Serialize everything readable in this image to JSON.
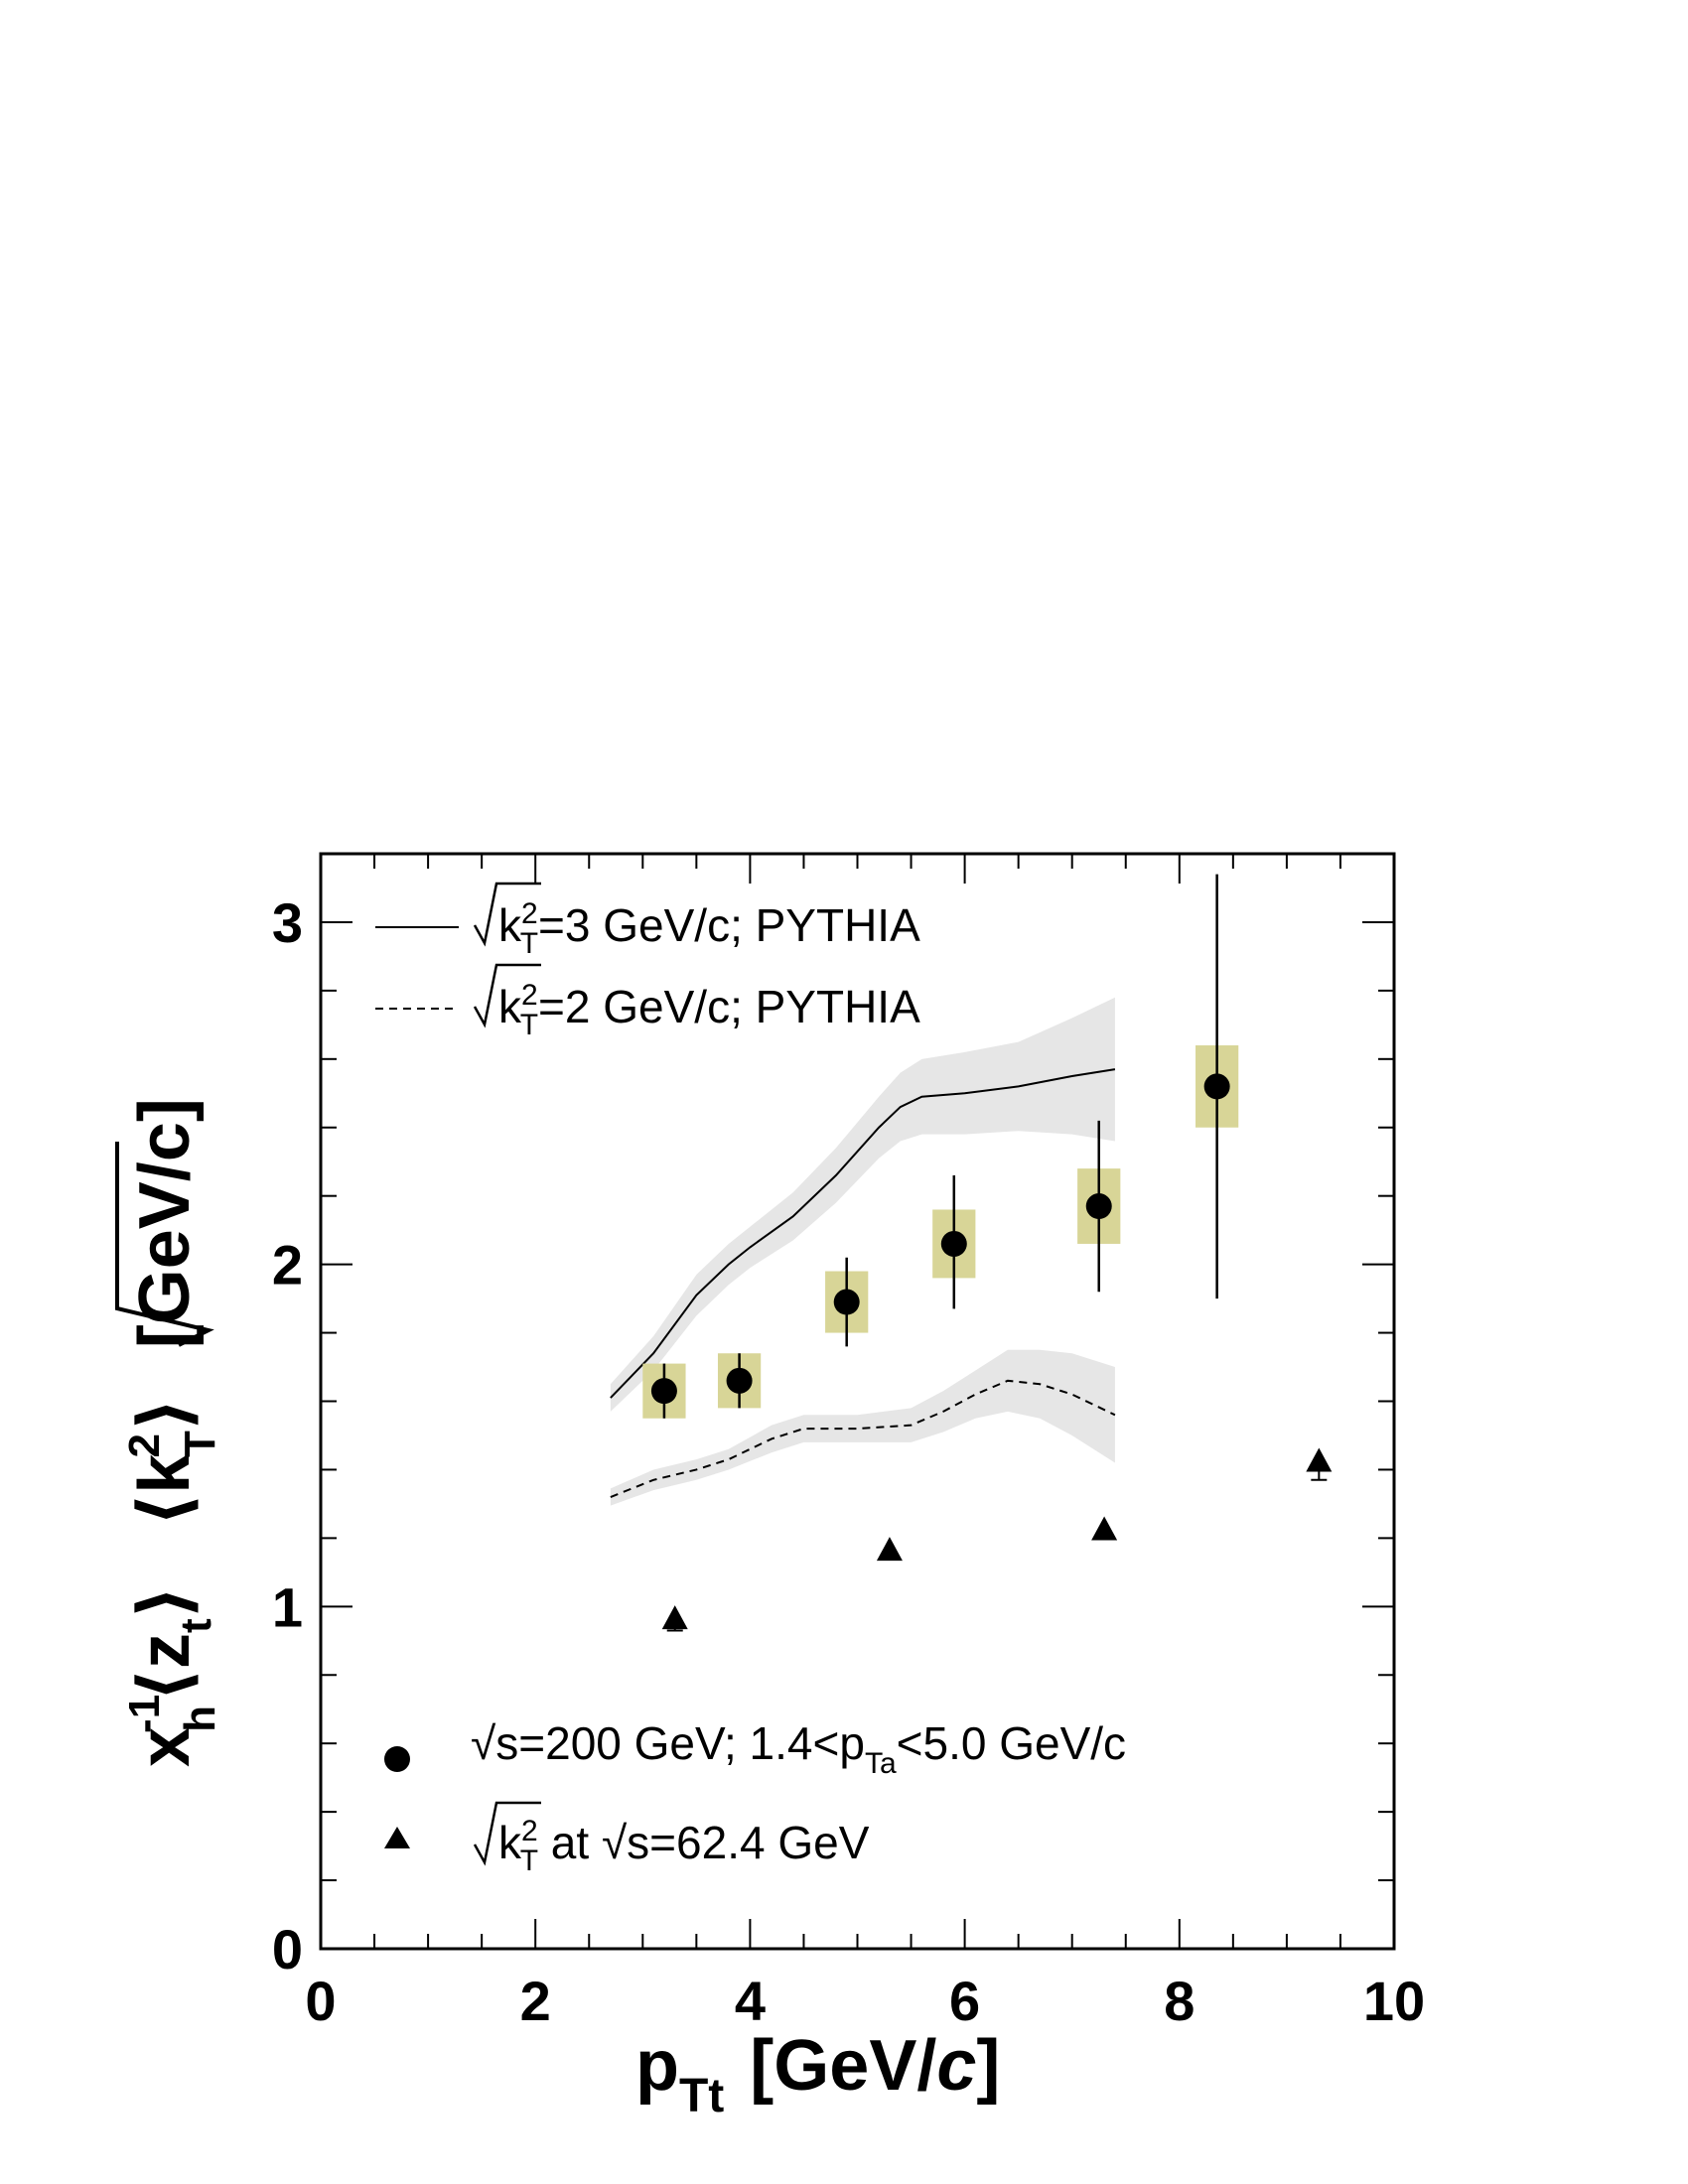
{
  "chart_data": {
    "type": "scatter",
    "title": "",
    "xlabel": {
      "main": "p",
      "sub": "Tt",
      "unit_prefix": "[GeV/",
      "unit_italic": "c",
      "unit_suffix": "]"
    },
    "ylabel": {
      "x": "x",
      "x_sup": "-1",
      "x_sub": "h",
      "z": "⟨z",
      "z_sub": "t",
      "z_close": "⟩",
      "k": "⟨k",
      "k_sup": "2",
      "k_sub": "T",
      "k_close": "⟩",
      "unit": "[GeV/c]"
    },
    "xlim": [
      0,
      10
    ],
    "ylim": [
      0,
      3.2
    ],
    "xticks": [
      {
        "value": 0,
        "label": "0"
      },
      {
        "value": 2,
        "label": "2"
      },
      {
        "value": 4,
        "label": "4"
      },
      {
        "value": 6,
        "label": "6"
      },
      {
        "value": 8,
        "label": "8"
      },
      {
        "value": 10,
        "label": "10"
      }
    ],
    "yticks": [
      {
        "value": 0,
        "label": "0"
      },
      {
        "value": 1,
        "label": "1"
      },
      {
        "value": 2,
        "label": "2"
      },
      {
        "value": 3,
        "label": "3"
      }
    ],
    "grid": false,
    "legend_top": [
      {
        "style": "solid",
        "prefix": "k",
        "sup": "2",
        "sub": "T",
        "text": "=3 GeV/c; PYTHIA"
      },
      {
        "style": "dashed",
        "prefix": "k",
        "sup": "2",
        "sub": "T",
        "text": "=2 GeV/c; PYTHIA"
      }
    ],
    "legend_bottom": [
      {
        "marker": "circle",
        "parts": [
          "√s=200 GeV; 1.4<p",
          "Ta",
          "<5.0 GeV/c"
        ]
      },
      {
        "marker": "triangle",
        "parts": [
          "k",
          "2",
          "T",
          " at √s=62.4 GeV"
        ]
      }
    ],
    "series": [
      {
        "kind": "circle",
        "points": [
          {
            "x": 3.2,
            "y": 1.63,
            "err_lo": 0.08,
            "err_hi": 0.08,
            "sys": 0.08,
            "sys_w": 0.4
          },
          {
            "x": 3.9,
            "y": 1.66,
            "err_lo": 0.08,
            "err_hi": 0.08,
            "sys": 0.08,
            "sys_w": 0.4
          },
          {
            "x": 4.9,
            "y": 1.89,
            "err_lo": 0.13,
            "err_hi": 0.13,
            "sys": 0.09,
            "sys_w": 0.4
          },
          {
            "x": 5.9,
            "y": 2.06,
            "err_lo": 0.19,
            "err_hi": 0.2,
            "sys": 0.1,
            "sys_w": 0.4
          },
          {
            "x": 7.25,
            "y": 2.17,
            "err_lo": 0.25,
            "err_hi": 0.25,
            "sys": 0.11,
            "sys_w": 0.4
          },
          {
            "x": 8.35,
            "y": 2.52,
            "err_lo": 0.62,
            "err_hi": 0.62,
            "sys": 0.12,
            "sys_w": 0.4
          }
        ]
      },
      {
        "kind": "triangle",
        "points": [
          {
            "x": 3.3,
            "y": 0.96,
            "err_lo": 0.03,
            "err_hi": 0.02
          },
          {
            "x": 5.3,
            "y": 1.16,
            "err_lo": 0.01,
            "err_hi": 0.01
          },
          {
            "x": 7.3,
            "y": 1.22,
            "err_lo": 0.01,
            "err_hi": 0.01
          },
          {
            "x": 9.3,
            "y": 1.42,
            "err_lo": 0.05,
            "err_hi": 0.02
          }
        ]
      },
      {
        "kind": "line",
        "style": "solid",
        "x": [
          2.7,
          3.1,
          3.5,
          3.8,
          4.0,
          4.4,
          4.8,
          5.2,
          5.4,
          5.6,
          6.0,
          6.5,
          7.0,
          7.4
        ],
        "y": [
          1.61,
          1.74,
          1.91,
          2.0,
          2.05,
          2.14,
          2.26,
          2.4,
          2.46,
          2.49,
          2.5,
          2.52,
          2.55,
          2.57
        ],
        "band": [
          0.04,
          0.05,
          0.06,
          0.06,
          0.06,
          0.07,
          0.08,
          0.09,
          0.1,
          0.11,
          0.12,
          0.13,
          0.17,
          0.21
        ]
      },
      {
        "kind": "line",
        "style": "dashed",
        "x": [
          2.7,
          3.1,
          3.5,
          3.8,
          4.2,
          4.5,
          5.0,
          5.5,
          5.8,
          6.1,
          6.4,
          6.7,
          7.0,
          7.4
        ],
        "y": [
          1.32,
          1.37,
          1.4,
          1.43,
          1.49,
          1.52,
          1.52,
          1.53,
          1.57,
          1.62,
          1.66,
          1.65,
          1.62,
          1.56
        ],
        "band": [
          0.025,
          0.03,
          0.03,
          0.03,
          0.04,
          0.04,
          0.04,
          0.05,
          0.06,
          0.07,
          0.09,
          0.1,
          0.12,
          0.14
        ]
      }
    ]
  }
}
